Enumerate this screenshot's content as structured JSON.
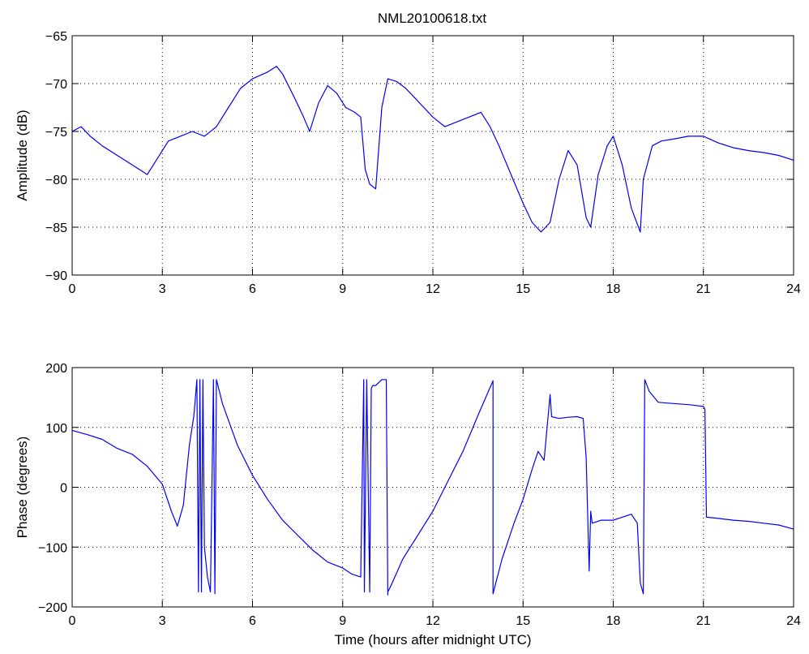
{
  "title": "NML20100618.txt",
  "colors": {
    "series": "#0000ff",
    "axes": "#000000",
    "grid": "#000000",
    "background": "#ffffff"
  },
  "chart_data": [
    {
      "type": "line",
      "title": "NML20100618.txt",
      "xlabel": "",
      "ylabel": "Amplitude (dB)",
      "xlim": [
        0,
        24
      ],
      "ylim": [
        -90,
        -65
      ],
      "xticks": [
        0,
        3,
        6,
        9,
        12,
        15,
        18,
        21,
        24
      ],
      "yticks": [
        -90,
        -85,
        -80,
        -75,
        -70,
        -65
      ],
      "xtick_labels": [
        "0",
        "3",
        "6",
        "9",
        "12",
        "15",
        "18",
        "21",
        "24"
      ],
      "ytick_labels": [
        "−90",
        "−85",
        "−80",
        "−75",
        "−70",
        "−65"
      ],
      "grid": true,
      "series": [
        {
          "x": [
            0,
            0.3,
            0.6,
            1.0,
            1.5,
            2.0,
            2.5,
            2.8,
            3.2,
            3.6,
            4.0,
            4.4,
            4.8,
            5.2,
            5.6,
            6.0,
            6.5,
            6.8,
            7.0,
            7.4,
            7.7,
            7.9,
            8.2,
            8.5,
            8.8,
            9.1,
            9.4,
            9.6,
            9.75,
            9.9,
            10.1,
            10.3,
            10.5,
            10.8,
            11.1,
            11.4,
            11.7,
            12.0,
            12.4,
            12.8,
            13.2,
            13.6,
            13.9,
            14.2,
            14.6,
            15.0,
            15.3,
            15.6,
            15.9,
            16.2,
            16.5,
            16.8,
            17.1,
            17.25,
            17.5,
            17.8,
            18.0,
            18.3,
            18.6,
            18.9,
            19.0,
            19.3,
            19.6,
            20.0,
            20.5,
            21.0,
            21.5,
            22.0,
            22.5,
            23.0,
            23.5,
            24.0
          ],
          "y": [
            -75,
            -74.5,
            -75.5,
            -76.5,
            -77.5,
            -78.5,
            -79.5,
            -78,
            -76,
            -75.5,
            -75,
            -75.5,
            -74.5,
            -72.5,
            -70.5,
            -69.5,
            -68.8,
            -68.2,
            -69,
            -71.5,
            -73.5,
            -75,
            -72,
            -70.2,
            -71,
            -72.5,
            -73,
            -73.5,
            -79,
            -80.5,
            -81,
            -72.5,
            -69.5,
            -69.8,
            -70.5,
            -71.5,
            -72.5,
            -73.5,
            -74.5,
            -74,
            -73.5,
            -73,
            -74.5,
            -76.5,
            -79.5,
            -82.5,
            -84.5,
            -85.5,
            -84.5,
            -80,
            -77,
            -78.5,
            -84,
            -85,
            -79.5,
            -76.5,
            -75.5,
            -78.5,
            -83,
            -85.5,
            -80,
            -76.5,
            -76,
            -75.8,
            -75.5,
            -75.5,
            -76.2,
            -76.7,
            -77,
            -77.2,
            -77.5,
            -78
          ]
        }
      ]
    },
    {
      "type": "line",
      "title": "",
      "xlabel": "Time (hours after midnight UTC)",
      "ylabel": "Phase (degrees)",
      "xlim": [
        0,
        24
      ],
      "ylim": [
        -200,
        200
      ],
      "xticks": [
        0,
        3,
        6,
        9,
        12,
        15,
        18,
        21,
        24
      ],
      "yticks": [
        -200,
        -100,
        0,
        100,
        200
      ],
      "xtick_labels": [
        "0",
        "3",
        "6",
        "9",
        "12",
        "15",
        "18",
        "21",
        "24"
      ],
      "ytick_labels": [
        "−200",
        "−100",
        "0",
        "100",
        "200"
      ],
      "grid": true,
      "series": [
        {
          "x": [
            0,
            0.5,
            1.0,
            1.5,
            2.0,
            2.5,
            3.0,
            3.3,
            3.5,
            3.7,
            3.9,
            4.05,
            4.15,
            4.2,
            4.25,
            4.3,
            4.35,
            4.4,
            4.5,
            4.6,
            4.7,
            4.75,
            4.8,
            5.0,
            5.5,
            6.0,
            6.5,
            7.0,
            7.5,
            8.0,
            8.5,
            9.0,
            9.3,
            9.6,
            9.7,
            9.72,
            9.8,
            9.9,
            9.95,
            10.0,
            10.1,
            10.3,
            10.45,
            10.5,
            10.5,
            10.6,
            11.0,
            11.5,
            12.0,
            12.5,
            13.0,
            13.5,
            14.0,
            14.0,
            14.3,
            14.7,
            15.0,
            15.3,
            15.5,
            15.7,
            15.8,
            15.9,
            15.95,
            16.2,
            16.5,
            16.8,
            17.0,
            17.1,
            17.2,
            17.25,
            17.3,
            17.6,
            18.0,
            18.3,
            18.6,
            18.8,
            18.9,
            19.0,
            19.05,
            19.2,
            19.5,
            20.0,
            20.5,
            21.0,
            21.05,
            21.1,
            21.5,
            22.0,
            22.5,
            23.0,
            23.5,
            24.0
          ],
          "y": [
            95,
            88,
            80,
            65,
            55,
            35,
            5,
            -40,
            -65,
            -30,
            70,
            120,
            180,
            -175,
            180,
            -175,
            180,
            -100,
            -150,
            -175,
            180,
            -178,
            180,
            140,
            70,
            20,
            -20,
            -55,
            -80,
            -105,
            -125,
            -135,
            -145,
            -150,
            180,
            -175,
            180,
            -175,
            165,
            170,
            170,
            180,
            180,
            -180,
            -175,
            -165,
            -120,
            -80,
            -40,
            10,
            60,
            120,
            178,
            -178,
            -120,
            -60,
            -20,
            30,
            60,
            45,
            100,
            155,
            118,
            115,
            117,
            118,
            115,
            50,
            -140,
            -40,
            -60,
            -55,
            -55,
            -50,
            -45,
            -60,
            -160,
            -178,
            180,
            160,
            142,
            140,
            138,
            135,
            130,
            -50,
            -52,
            -55,
            -57,
            -60,
            -63,
            -70
          ]
        }
      ]
    }
  ]
}
